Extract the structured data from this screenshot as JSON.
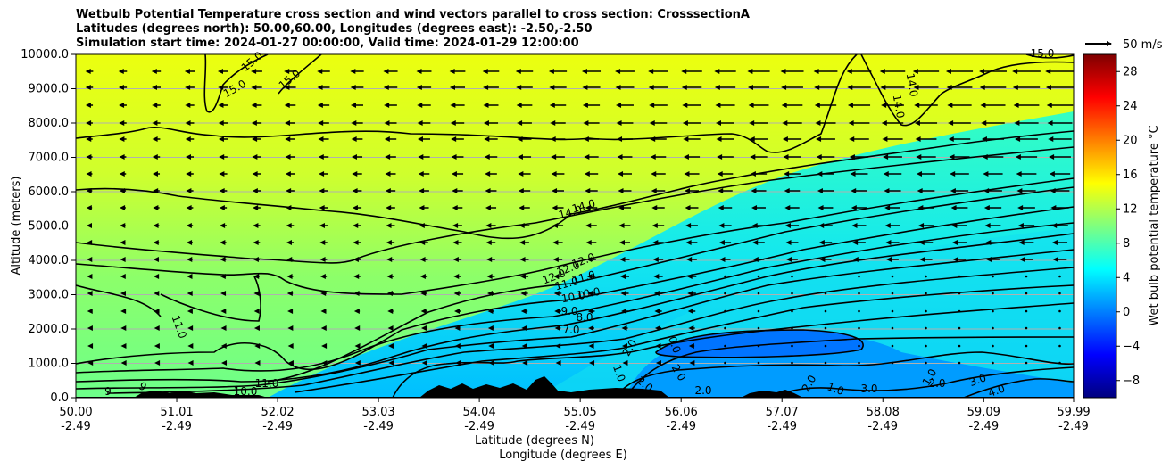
{
  "titles": {
    "line1": "Wetbulb Potential Temperature cross section and wind vectors parallel to cross section: CrosssectionA",
    "line2": "Latitudes (degrees north): 50.00,60.00, Longitudes (degrees east): -2.50,-2.50",
    "line3": "Simulation start time: 2024-01-27 00:00:00, Valid time: 2024-01-29 12:00:00"
  },
  "chart_data": {
    "type": "contour",
    "ylabel": "Altitude (meters)",
    "xlabel_lat": "Latitude (degrees N)",
    "xlabel_lon": "Longitude (degrees E)",
    "ylim": [
      0,
      10000
    ],
    "yticks": [
      "0.0",
      "1000.0",
      "2000.0",
      "3000.0",
      "4000.0",
      "5000.0",
      "6000.0",
      "7000.0",
      "8000.0",
      "9000.0",
      "10000.0"
    ],
    "xticks": [
      {
        "lat": "50.00",
        "lon": "-2.49"
      },
      {
        "lat": "51.01",
        "lon": "-2.49"
      },
      {
        "lat": "52.02",
        "lon": "-2.49"
      },
      {
        "lat": "53.03",
        "lon": "-2.49"
      },
      {
        "lat": "54.04",
        "lon": "-2.49"
      },
      {
        "lat": "55.05",
        "lon": "-2.49"
      },
      {
        "lat": "56.06",
        "lon": "-2.49"
      },
      {
        "lat": "57.07",
        "lon": "-2.49"
      },
      {
        "lat": "58.08",
        "lon": "-2.49"
      },
      {
        "lat": "59.09",
        "lon": "-2.49"
      },
      {
        "lat": "59.99",
        "lon": "-2.49"
      }
    ],
    "grid": "horizontal",
    "colorbar": {
      "label": "Wet bulb potential temperature °C",
      "range": [
        -10,
        30
      ],
      "ticks": [
        "−8",
        "−4",
        "0",
        "4",
        "8",
        "12",
        "16",
        "20",
        "24",
        "28"
      ],
      "colormap": "jet"
    },
    "wind_key": "50 m/s",
    "contour_labels": [
      "15.0",
      "15.0",
      "15.0",
      "15.0",
      "14.0",
      "14.0",
      "14.0",
      "14.0",
      "12.0",
      "12.0",
      "12.0",
      "11.0",
      "11.0",
      "10.0",
      "10.0",
      "9.0",
      "8.0",
      "7.0",
      "11.0",
      "11.0",
      "10.0",
      "9",
      "9",
      "2.0",
      "0.0",
      "2.0",
      "1.0",
      "2.0",
      "2.0",
      "2.0",
      "1.0",
      "3.0",
      "1.0",
      "2.0",
      "3.0",
      "4.0"
    ]
  }
}
